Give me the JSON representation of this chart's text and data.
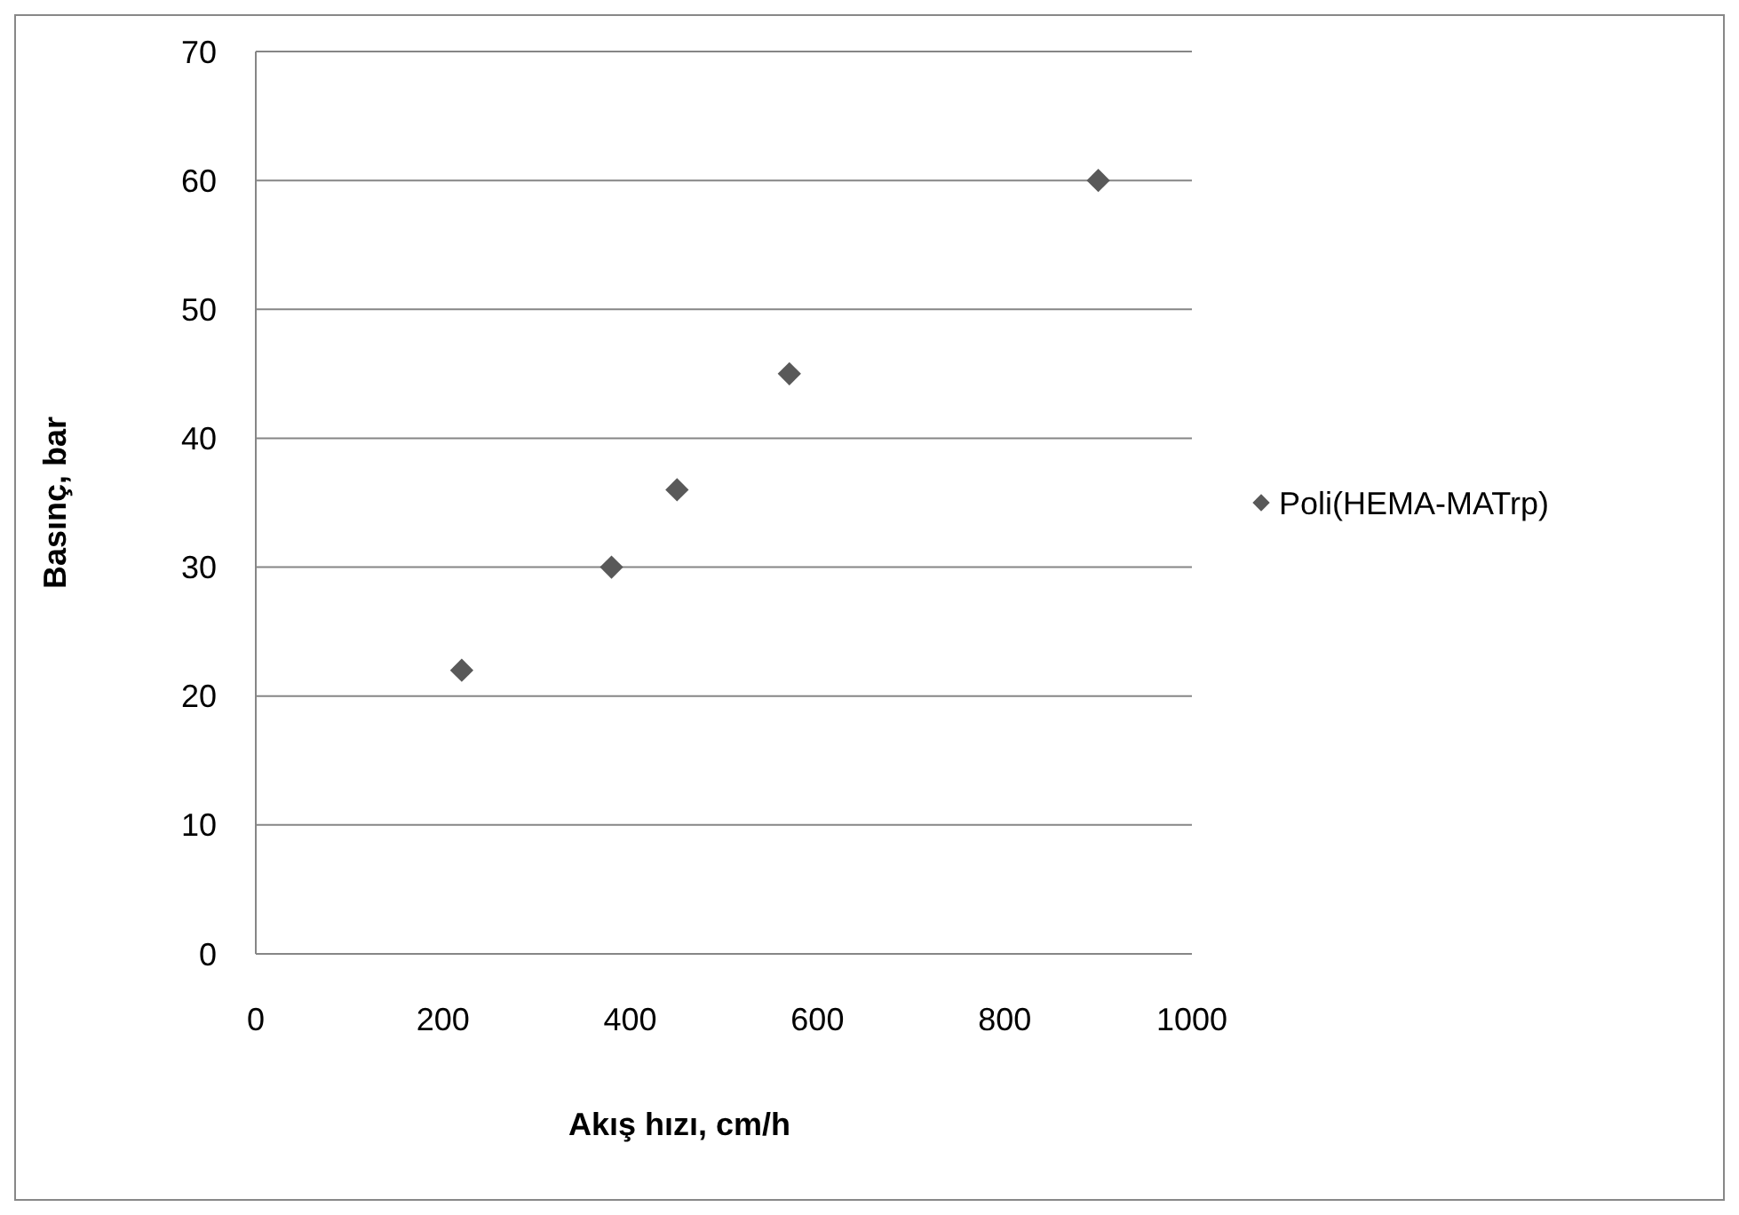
{
  "chart_data": {
    "type": "scatter",
    "xlabel": "Akış hızı, cm/h",
    "ylabel": "Basınç, bar",
    "x": [
      220,
      380,
      450,
      570,
      900
    ],
    "series": [
      {
        "name": "Poli(HEMA-MATrp)",
        "color": "#595959",
        "values": [
          22,
          30,
          36,
          45,
          60
        ]
      }
    ],
    "xlim": [
      0,
      1000
    ],
    "xticks": [
      0,
      200,
      400,
      600,
      800,
      1000
    ],
    "ylim": [
      0,
      70
    ],
    "yticks": [
      0,
      10,
      20,
      30,
      40,
      50,
      60,
      70
    ],
    "grid": "y",
    "legend": "right",
    "marker": "diamond"
  }
}
